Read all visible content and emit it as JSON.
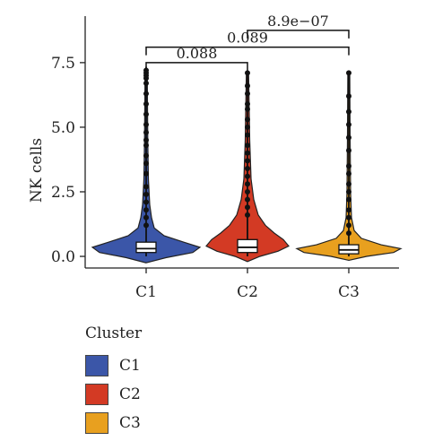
{
  "chart_data": {
    "type": "violin",
    "ylabel": "NK cells",
    "ylim": [
      -0.45,
      9.3
    ],
    "yticks": [
      {
        "v": 0.0,
        "label": "0.0"
      },
      {
        "v": 2.5,
        "label": "2.5"
      },
      {
        "v": 5.0,
        "label": "5.0"
      },
      {
        "v": 7.5,
        "label": "7.5"
      }
    ],
    "categories": [
      "C1",
      "C2",
      "C3"
    ],
    "colors": {
      "C1": "#3B56A8",
      "C2": "#D33A24",
      "C3": "#E8A01F"
    },
    "series": [
      {
        "name": "C1",
        "color": "#3B56A8",
        "box": {
          "q1": 0.15,
          "median": 0.3,
          "q3": 0.55,
          "whisker_low": 0.0,
          "whisker_high": 7.3
        },
        "outliers": [
          1.2,
          1.5,
          1.8,
          2.1,
          2.4,
          2.7,
          3.2,
          3.6,
          3.9,
          4.3,
          4.5,
          4.8,
          5.1,
          5.5,
          5.9,
          6.3,
          6.7,
          6.9,
          7.0,
          7.1,
          7.2
        ]
      },
      {
        "name": "C2",
        "color": "#D33A24",
        "box": {
          "q1": 0.15,
          "median": 0.35,
          "q3": 0.65,
          "whisker_low": 0.0,
          "whisker_high": 7.1
        },
        "outliers": [
          1.6,
          1.9,
          2.2,
          2.5,
          2.8,
          3.1,
          3.4,
          3.7,
          4.0,
          4.3,
          4.7,
          5.0,
          5.3,
          5.7,
          5.9,
          6.3,
          6.6,
          7.1
        ]
      },
      {
        "name": "C3",
        "color": "#E8A01F",
        "box": {
          "q1": 0.1,
          "median": 0.25,
          "q3": 0.45,
          "whisker_low": 0.0,
          "whisker_high": 7.1
        },
        "outliers": [
          0.9,
          1.2,
          1.5,
          1.8,
          2.2,
          2.5,
          2.8,
          3.2,
          3.5,
          4.1,
          4.6,
          5.1,
          5.6,
          6.2,
          7.1
        ]
      }
    ],
    "comparisons": [
      {
        "from": "C1",
        "to": "C2",
        "y": 7.5,
        "label": "0.088"
      },
      {
        "from": "C1",
        "to": "C3",
        "y": 8.1,
        "label": "0.089"
      },
      {
        "from": "C2",
        "to": "C3",
        "y": 8.75,
        "label": "8.9e−07"
      }
    ]
  },
  "legend": {
    "title": "Cluster",
    "items": [
      {
        "label": "C1",
        "color": "#3B56A8"
      },
      {
        "label": "C2",
        "color": "#D33A24"
      },
      {
        "label": "C3",
        "color": "#E8A01F"
      }
    ]
  }
}
